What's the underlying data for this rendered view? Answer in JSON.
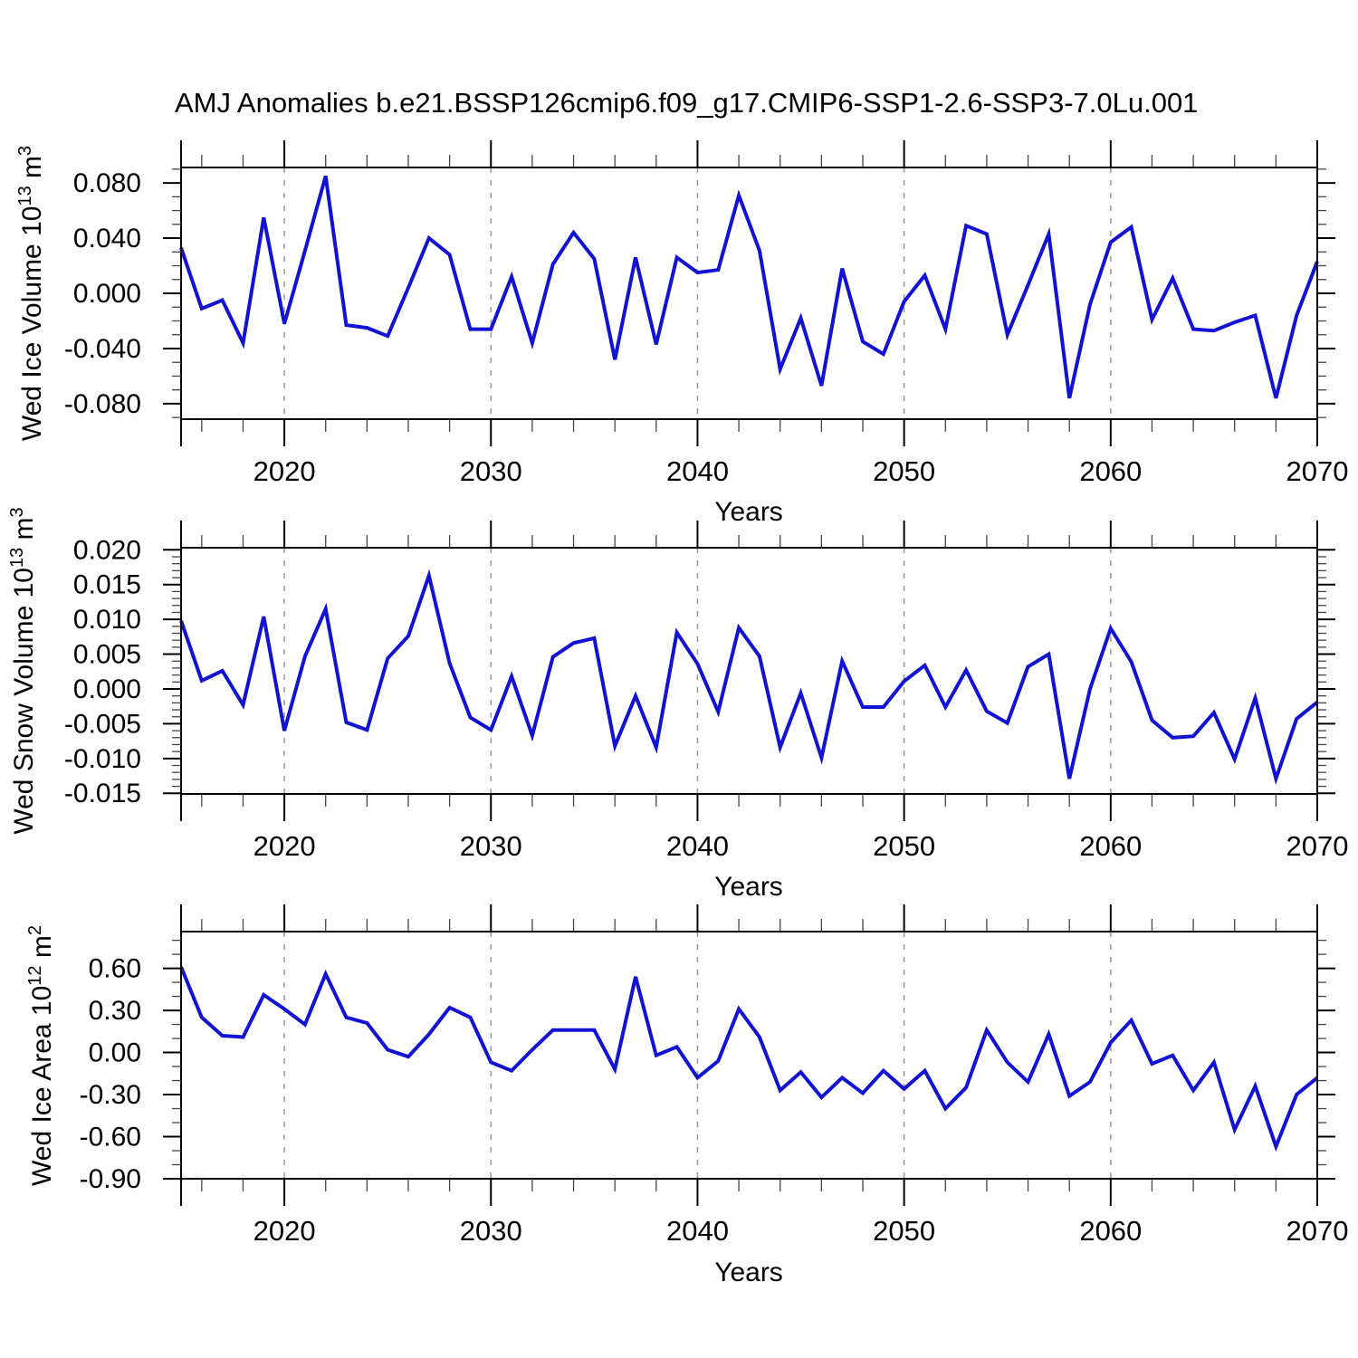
{
  "title": "AMJ Anomalies b.e21.BSSP126cmip6.f09_g17.CMIP6-SSP1-2.6-SSP3-7.0Lu.001",
  "colors": {
    "line": "#1212d4",
    "axis": "#000000",
    "grid": "#999999",
    "minor_tick": "#444444",
    "background": "#ffffff"
  },
  "years": [
    2015,
    2016,
    2017,
    2018,
    2019,
    2020,
    2021,
    2022,
    2023,
    2024,
    2025,
    2026,
    2027,
    2028,
    2029,
    2030,
    2031,
    2032,
    2033,
    2034,
    2035,
    2036,
    2037,
    2038,
    2039,
    2040,
    2041,
    2042,
    2043,
    2044,
    2045,
    2046,
    2047,
    2048,
    2049,
    2050,
    2051,
    2052,
    2053,
    2054,
    2055,
    2056,
    2057,
    2058,
    2059,
    2060,
    2061,
    2062,
    2063,
    2064,
    2065,
    2066,
    2067,
    2068,
    2069,
    2070
  ],
  "chart_data": [
    {
      "type": "line",
      "series_name": "Wed Ice Volume anomaly",
      "ylabel_text": "Wed Ice Volume 10",
      "ylabel_exp": "13",
      "ylabel_unit": " m",
      "ylabel_unit_exp": "3",
      "xlabel": "Years",
      "x_start": 2015,
      "x_end": 2070,
      "xticks": [
        {
          "v": 2020,
          "label": "2020"
        },
        {
          "v": 2030,
          "label": "2030"
        },
        {
          "v": 2040,
          "label": "2040"
        },
        {
          "v": 2050,
          "label": "2050"
        },
        {
          "v": 2060,
          "label": "2060"
        },
        {
          "v": 2070,
          "label": "2070"
        }
      ],
      "xminor_step": 2,
      "grid_x": [
        2020,
        2030,
        2040,
        2050,
        2060
      ],
      "ylim": [
        -0.0912,
        0.0912
      ],
      "yticks": [
        {
          "v": 0.08,
          "label": "0.080"
        },
        {
          "v": 0.04,
          "label": "0.040"
        },
        {
          "v": 0,
          "label": "0.000"
        },
        {
          "v": -0.04,
          "label": "-0.040"
        },
        {
          "v": -0.08,
          "label": "-0.080"
        }
      ],
      "yminor_step": 0.01,
      "values": [
        0.033,
        -0.011,
        -0.005,
        -0.036,
        0.055,
        -0.022,
        0.031,
        0.085,
        -0.023,
        -0.025,
        -0.031,
        0.004,
        0.04,
        0.028,
        -0.026,
        -0.026,
        0.012,
        -0.036,
        0.021,
        0.044,
        0.025,
        -0.048,
        0.026,
        -0.037,
        0.026,
        0.015,
        0.017,
        0.071,
        0.031,
        -0.055,
        -0.018,
        -0.067,
        0.018,
        -0.035,
        -0.044,
        -0.006,
        0.013,
        -0.026,
        0.049,
        0.043,
        -0.03,
        0.006,
        0.043,
        -0.076,
        -0.008,
        0.037,
        0.048,
        -0.019,
        0.011,
        -0.026,
        -0.027,
        -0.021,
        -0.016,
        -0.076,
        -0.016,
        0.023
      ]
    },
    {
      "type": "line",
      "series_name": "Wed Snow Volume anomaly",
      "ylabel_text": "Wed Snow Volume 10",
      "ylabel_exp": "13",
      "ylabel_unit": " m",
      "ylabel_unit_exp": "3",
      "xlabel": "Years",
      "x_start": 2015,
      "x_end": 2070,
      "xticks": [
        {
          "v": 2020,
          "label": "2020"
        },
        {
          "v": 2030,
          "label": "2030"
        },
        {
          "v": 2040,
          "label": "2040"
        },
        {
          "v": 2050,
          "label": "2050"
        },
        {
          "v": 2060,
          "label": "2060"
        },
        {
          "v": 2070,
          "label": "2070"
        }
      ],
      "xminor_step": 2,
      "grid_x": [
        2020,
        2030,
        2040,
        2050,
        2060
      ],
      "ylim": [
        -0.0151,
        0.0203
      ],
      "yticks": [
        {
          "v": 0.02,
          "label": "0.020"
        },
        {
          "v": 0.015,
          "label": "0.015"
        },
        {
          "v": 0.01,
          "label": "0.010"
        },
        {
          "v": 0.005,
          "label": "0.005"
        },
        {
          "v": 0,
          "label": "0.000"
        },
        {
          "v": -0.005,
          "label": "-0.005"
        },
        {
          "v": -0.01,
          "label": "-0.010"
        },
        {
          "v": -0.015,
          "label": "-0.015"
        }
      ],
      "yminor_step": 0.001,
      "values": [
        0.0098,
        0.0012,
        0.0026,
        -0.0023,
        0.0104,
        -0.006,
        0.0047,
        0.0115,
        -0.0048,
        -0.0059,
        0.0044,
        0.0076,
        0.0163,
        0.0037,
        -0.0041,
        -0.0059,
        0.0018,
        -0.0067,
        0.0046,
        0.0066,
        0.0073,
        -0.0082,
        -0.001,
        -0.0084,
        0.0081,
        0.0036,
        -0.0033,
        0.0088,
        0.0047,
        -0.0084,
        -0.0006,
        -0.0099,
        0.004,
        -0.0026,
        -0.0026,
        0.0011,
        0.0034,
        -0.0026,
        0.0027,
        -0.0032,
        -0.0049,
        0.0032,
        0.005,
        -0.0129,
        0.0,
        0.0087,
        0.0039,
        -0.0045,
        -0.007,
        -0.0068,
        -0.0034,
        -0.0101,
        -0.0013,
        -0.0129,
        -0.0043,
        -0.0019
      ]
    },
    {
      "type": "line",
      "series_name": "Wed Ice Area anomaly",
      "ylabel_text": "Wed Ice Area 10",
      "ylabel_exp": "12",
      "ylabel_unit": " m",
      "ylabel_unit_exp": "2",
      "xlabel": "Years",
      "x_start": 2015,
      "x_end": 2070,
      "xticks": [
        {
          "v": 2020,
          "label": "2020"
        },
        {
          "v": 2030,
          "label": "2030"
        },
        {
          "v": 2040,
          "label": "2040"
        },
        {
          "v": 2050,
          "label": "2050"
        },
        {
          "v": 2060,
          "label": "2060"
        },
        {
          "v": 2070,
          "label": "2070"
        }
      ],
      "xminor_step": 2,
      "grid_x": [
        2020,
        2030,
        2040,
        2050,
        2060
      ],
      "ylim": [
        -0.9,
        0.862
      ],
      "yticks": [
        {
          "v": 0.6,
          "label": "0.60"
        },
        {
          "v": 0.3,
          "label": "0.30"
        },
        {
          "v": 0,
          "label": "0.00"
        },
        {
          "v": -0.3,
          "label": "-0.30"
        },
        {
          "v": -0.6,
          "label": "-0.60"
        },
        {
          "v": -0.9,
          "label": "-0.90"
        }
      ],
      "yminor_step": 0.1,
      "values": [
        0.61,
        0.25,
        0.12,
        0.11,
        0.41,
        0.31,
        0.2,
        0.56,
        0.25,
        0.21,
        0.02,
        -0.03,
        0.13,
        0.32,
        0.25,
        -0.07,
        -0.13,
        0.02,
        0.16,
        0.16,
        0.16,
        -0.12,
        0.54,
        -0.02,
        0.04,
        -0.18,
        -0.06,
        0.31,
        0.11,
        -0.27,
        -0.14,
        -0.32,
        -0.18,
        -0.29,
        -0.13,
        -0.26,
        -0.13,
        -0.4,
        -0.25,
        0.16,
        -0.07,
        -0.21,
        0.13,
        -0.31,
        -0.21,
        0.07,
        0.23,
        -0.08,
        -0.02,
        -0.27,
        -0.07,
        -0.55,
        -0.24,
        -0.67,
        -0.3,
        -0.18
      ]
    }
  ]
}
